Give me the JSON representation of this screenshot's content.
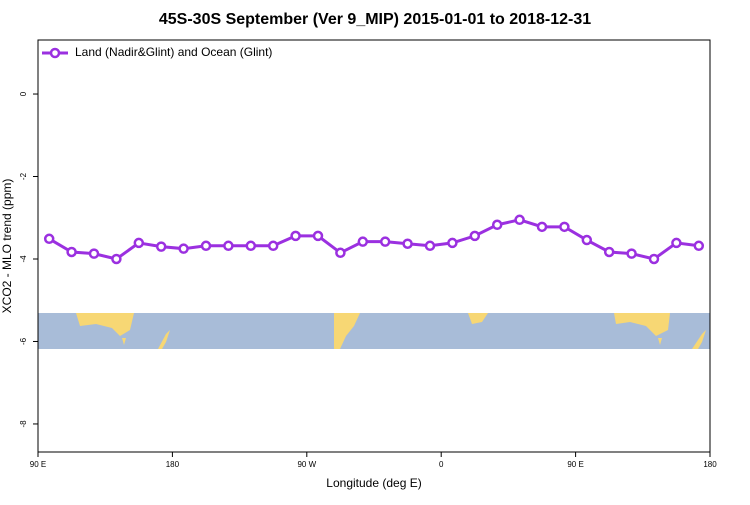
{
  "chart_data": {
    "type": "line",
    "title": "45S-30S September (Ver 9_MIP)   2015-01-01 to 2018-12-31",
    "x_label": "Longitude (deg E)",
    "y_label": "XCO2 - MLO trend (ppm)",
    "x": [
      97.5,
      112.5,
      127.5,
      142.5,
      157.5,
      172.5,
      187.5,
      202.5,
      217.5,
      232.5,
      247.5,
      262.5,
      277.5,
      292.5,
      307.5,
      322.5,
      337.5,
      352.5,
      367.5,
      382.5,
      397.5,
      412.5,
      427.5,
      442.5,
      457.5,
      472.5,
      487.5,
      502.5,
      517.5,
      532.5
    ],
    "series": [
      {
        "name": "Land (Nadir&Glint) and Ocean (Glint)",
        "color": "#9b30e0",
        "values": [
          -3.51,
          -3.83,
          -3.87,
          -4.0,
          -3.61,
          -3.7,
          -3.75,
          -3.68,
          -3.68,
          -3.68,
          -3.68,
          -3.44,
          -3.44,
          -3.85,
          -3.58,
          -3.58,
          -3.63,
          -3.68,
          -3.61,
          -3.44,
          -3.17,
          -3.05,
          -3.22,
          -3.22,
          -3.54,
          -3.83,
          -3.87,
          -4.0,
          -3.61,
          -3.68
        ]
      }
    ],
    "xlim": [
      90,
      540
    ],
    "xticks": [
      {
        "value": 90,
        "label": "90 E"
      },
      180,
      {
        "value": 270,
        "label": "90 W"
      },
      {
        "value": 360,
        "label": "0"
      },
      {
        "value": 450,
        "label": "90 E"
      },
      {
        "value": 540,
        "label": "180"
      }
    ],
    "ylim": [
      -8.68,
      1.31
    ],
    "yticks": [
      0,
      -2,
      -4,
      -6,
      -8
    ],
    "legend": "top-left"
  }
}
